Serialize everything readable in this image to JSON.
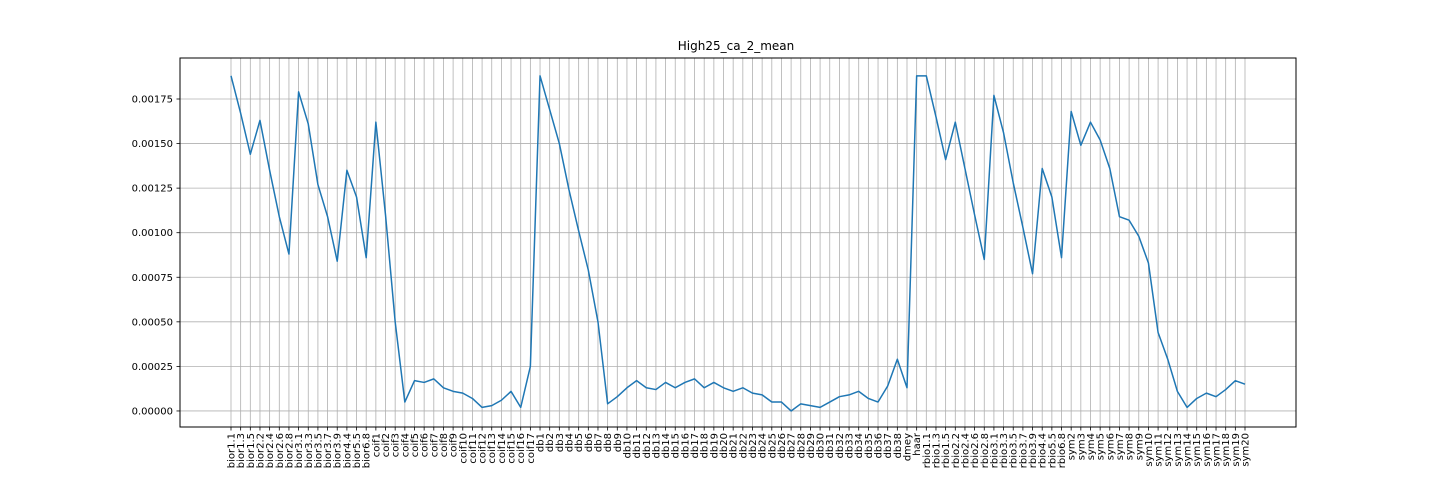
{
  "chart_data": {
    "type": "line",
    "title": "High25_ca_2_mean",
    "xlabel": "",
    "ylabel": "",
    "grid": true,
    "ylim": [
      -9e-05,
      0.00198
    ],
    "yticks": [
      "0.00000",
      "0.00025",
      "0.00050",
      "0.00075",
      "0.00100",
      "0.00125",
      "0.00150",
      "0.00175"
    ],
    "ytick_values": [
      0,
      0.00025,
      0.0005,
      0.00075,
      0.001,
      0.00125,
      0.0015,
      0.00175
    ],
    "colors": {
      "line": "#1f77b4",
      "grid": "#b0b0b0",
      "axes": "#000000"
    },
    "categories": [
      "bior1.1",
      "bior1.3",
      "bior1.5",
      "bior2.2",
      "bior2.4",
      "bior2.6",
      "bior2.8",
      "bior3.1",
      "bior3.3",
      "bior3.5",
      "bior3.7",
      "bior3.9",
      "bior4.4",
      "bior5.5",
      "bior6.8",
      "coif1",
      "coif2",
      "coif3",
      "coif4",
      "coif5",
      "coif6",
      "coif7",
      "coif8",
      "coif9",
      "coif10",
      "coif11",
      "coif12",
      "coif13",
      "coif14",
      "coif15",
      "coif16",
      "coif17",
      "db1",
      "db2",
      "db3",
      "db4",
      "db5",
      "db6",
      "db7",
      "db8",
      "db9",
      "db10",
      "db11",
      "db12",
      "db13",
      "db14",
      "db15",
      "db16",
      "db17",
      "db18",
      "db19",
      "db20",
      "db21",
      "db22",
      "db23",
      "db24",
      "db25",
      "db26",
      "db27",
      "db28",
      "db29",
      "db30",
      "db31",
      "db32",
      "db33",
      "db34",
      "db35",
      "db36",
      "db37",
      "db38",
      "dmey",
      "haar",
      "rbio1.1",
      "rbio1.3",
      "rbio1.5",
      "rbio2.2",
      "rbio2.4",
      "rbio2.6",
      "rbio2.8",
      "rbio3.1",
      "rbio3.3",
      "rbio3.5",
      "rbio3.7",
      "rbio3.9",
      "rbio4.4",
      "rbio5.5",
      "rbio6.8",
      "sym2",
      "sym3",
      "sym4",
      "sym5",
      "sym6",
      "sym7",
      "sym8",
      "sym9",
      "sym10",
      "sym11",
      "sym12",
      "sym13",
      "sym14",
      "sym15",
      "sym16",
      "sym17",
      "sym18",
      "sym19",
      "sym20"
    ],
    "series": [
      {
        "values": [
          0.00188,
          0.00167,
          0.00144,
          0.00163,
          0.00135,
          0.00109,
          0.00088,
          0.00179,
          0.00161,
          0.00127,
          0.00109,
          0.00084,
          0.00135,
          0.0012,
          0.00086,
          0.00162,
          0.0011,
          0.0005,
          5e-05,
          0.00017,
          0.00016,
          0.00018,
          0.00013,
          0.00011,
          0.0001,
          7e-05,
          2e-05,
          3e-05,
          6e-05,
          0.00011,
          2e-05,
          0.00025,
          0.00188,
          0.00169,
          0.0015,
          0.00124,
          0.00101,
          0.00079,
          0.0005,
          4e-05,
          8e-05,
          0.00013,
          0.00017,
          0.00013,
          0.00012,
          0.00016,
          0.00013,
          0.00016,
          0.00018,
          0.00013,
          0.00016,
          0.00013,
          0.00011,
          0.00013,
          0.0001,
          9e-05,
          5e-05,
          5e-05,
          0.0,
          4e-05,
          3e-05,
          2e-05,
          5e-05,
          8e-05,
          9e-05,
          0.00011,
          7e-05,
          5e-05,
          0.00014,
          0.00029,
          0.00013,
          0.00188,
          0.00188,
          0.00165,
          0.00141,
          0.00162,
          0.00136,
          0.0011,
          0.00085,
          0.00177,
          0.00156,
          0.00128,
          0.00103,
          0.00077,
          0.00136,
          0.0012,
          0.00086,
          0.00168,
          0.00149,
          0.00162,
          0.00152,
          0.00136,
          0.00109,
          0.00107,
          0.00098,
          0.00083,
          0.00044,
          0.00029,
          0.00011,
          2e-05,
          7e-05,
          0.0001,
          8e-05,
          0.00012,
          0.00017,
          0.00015
        ]
      }
    ]
  }
}
